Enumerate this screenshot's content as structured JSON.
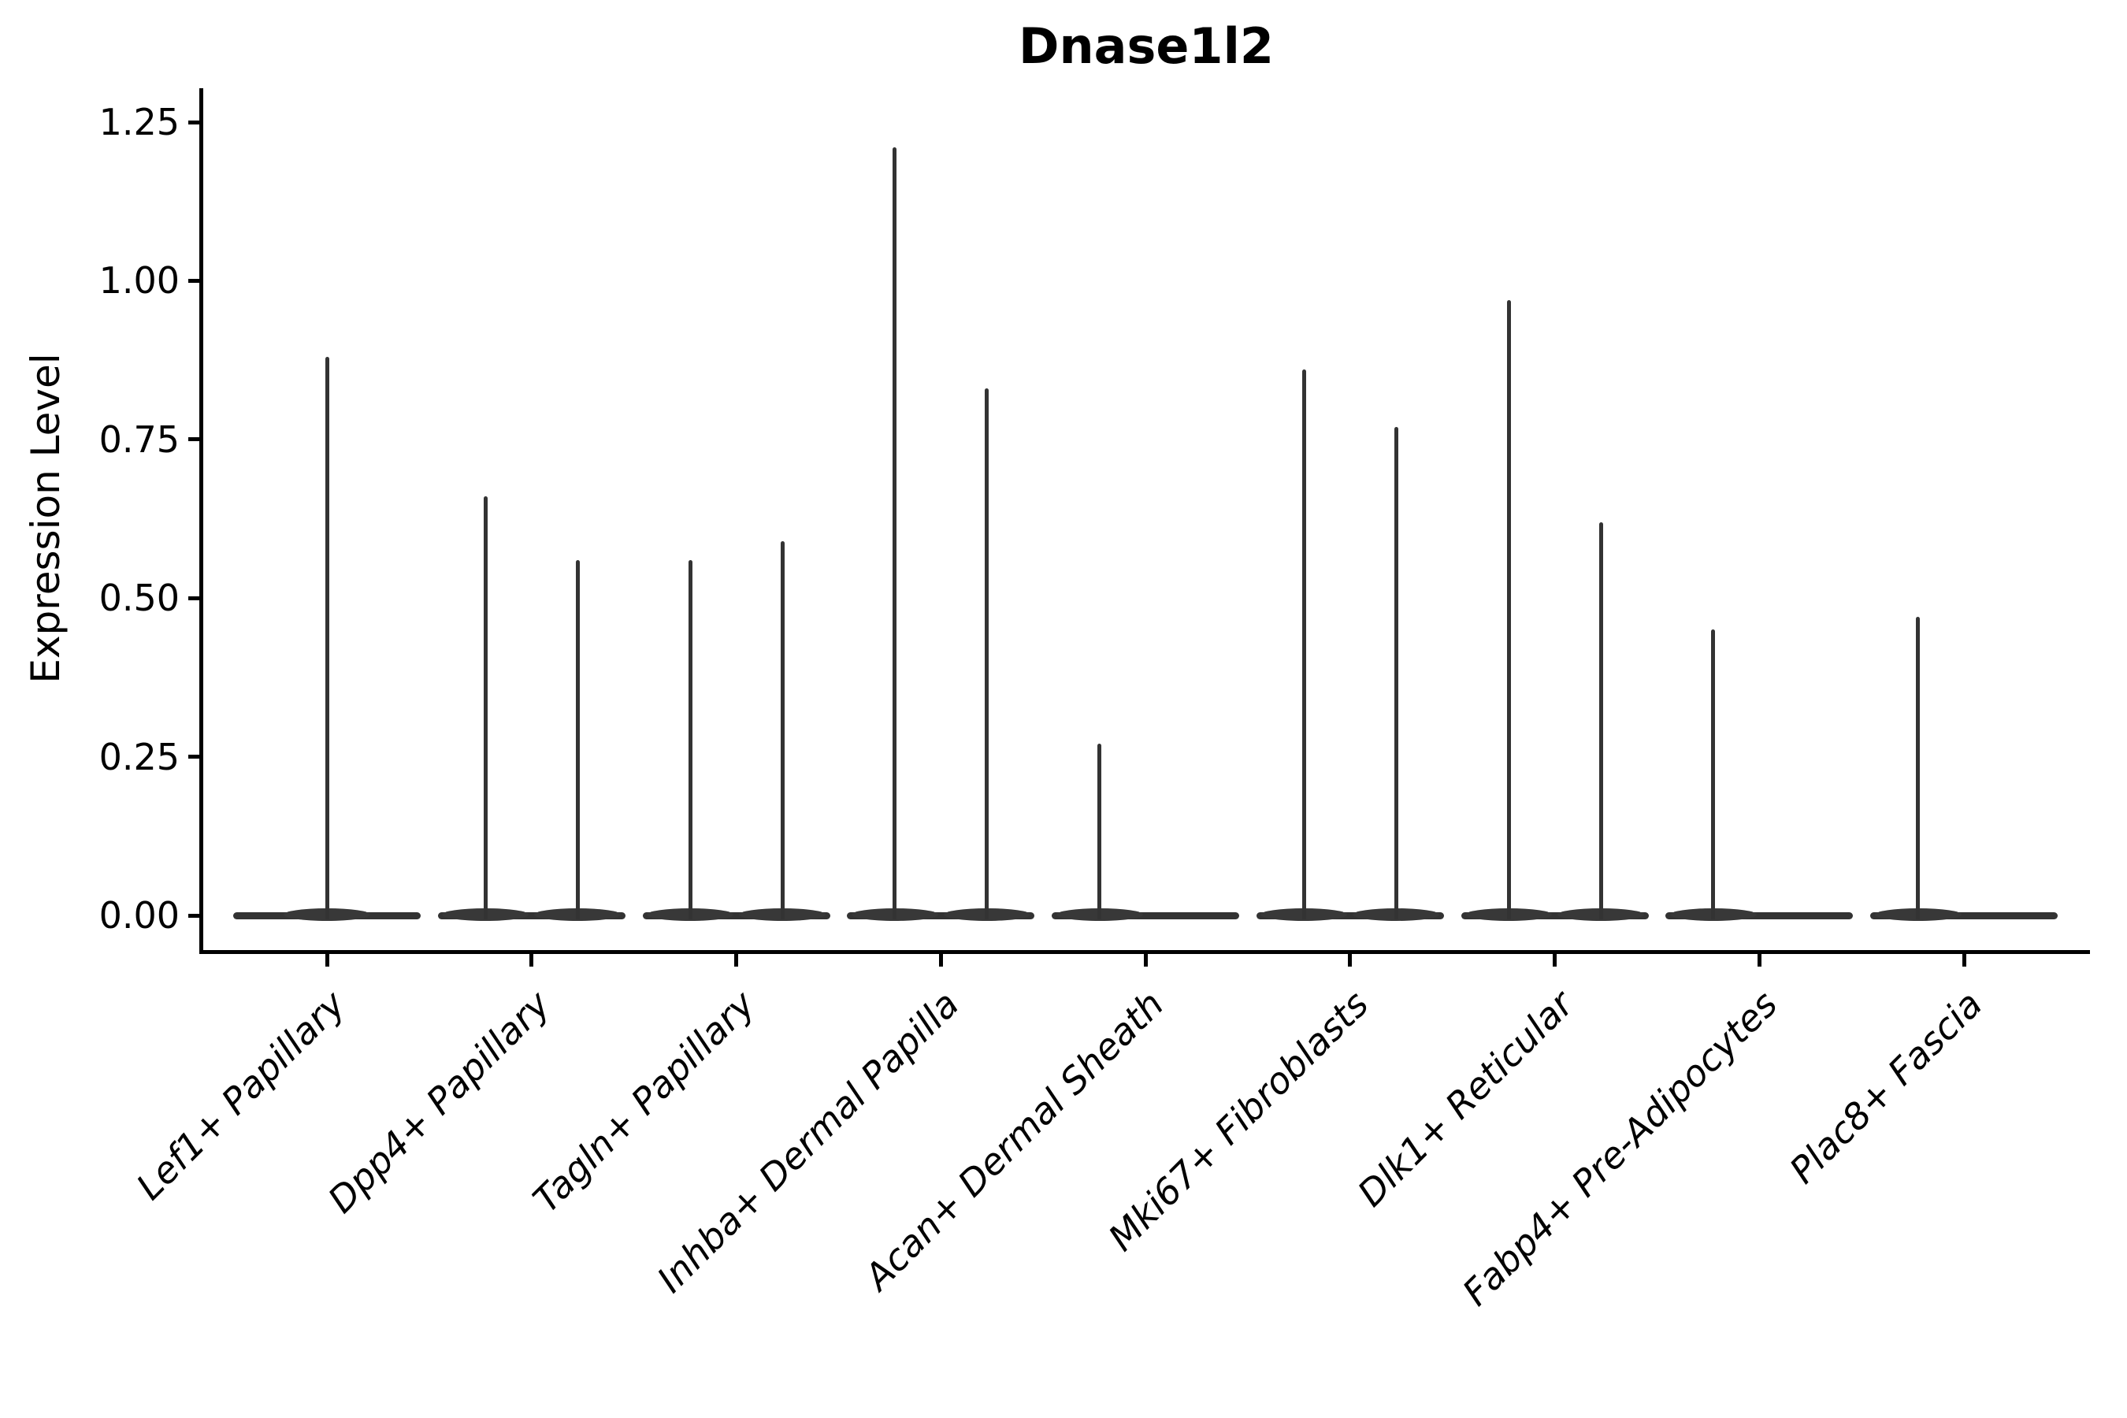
{
  "chart_data": {
    "type": "violin",
    "title": "Dnase1l2",
    "ylabel": "Expression Level",
    "xlabel": "",
    "ylim": [
      -0.06,
      1.3
    ],
    "yticks": [
      "0.00",
      "0.25",
      "0.50",
      "0.75",
      "1.00",
      "1.25"
    ],
    "grid": false,
    "legend": "none",
    "violin_color": "#333333",
    "axis_color": "#000000",
    "groups_per_category": 2,
    "categories": [
      {
        "label": "Lef1+ Papillary",
        "violins": [
          {
            "position": "center",
            "max": 0.88
          }
        ]
      },
      {
        "label": "Dpp4+ Papillary",
        "violins": [
          {
            "position": "left",
            "max": 0.66
          },
          {
            "position": "right",
            "max": 0.56
          }
        ]
      },
      {
        "label": "Tagln+ Papillary",
        "violins": [
          {
            "position": "left",
            "max": 0.56
          },
          {
            "position": "right",
            "max": 0.59
          }
        ]
      },
      {
        "label": "Inhba+ Dermal Papilla",
        "violins": [
          {
            "position": "left",
            "max": 1.21
          },
          {
            "position": "right",
            "max": 0.83
          }
        ]
      },
      {
        "label": "Acan+ Dermal Sheath",
        "violins": [
          {
            "position": "left",
            "max": 0.27
          }
        ]
      },
      {
        "label": "Mki67+ Fibroblasts",
        "violins": [
          {
            "position": "left",
            "max": 0.86
          },
          {
            "position": "right",
            "max": 0.77
          }
        ]
      },
      {
        "label": "Dlk1+ Reticular",
        "violins": [
          {
            "position": "left",
            "max": 0.97
          },
          {
            "position": "right",
            "max": 0.62
          }
        ]
      },
      {
        "label": "Fabp4+ Pre-Adipocytes",
        "violins": [
          {
            "position": "left",
            "max": 0.45
          }
        ]
      },
      {
        "label": "Plac8+ Fascia",
        "violins": [
          {
            "position": "left",
            "max": 0.47
          }
        ]
      }
    ]
  }
}
